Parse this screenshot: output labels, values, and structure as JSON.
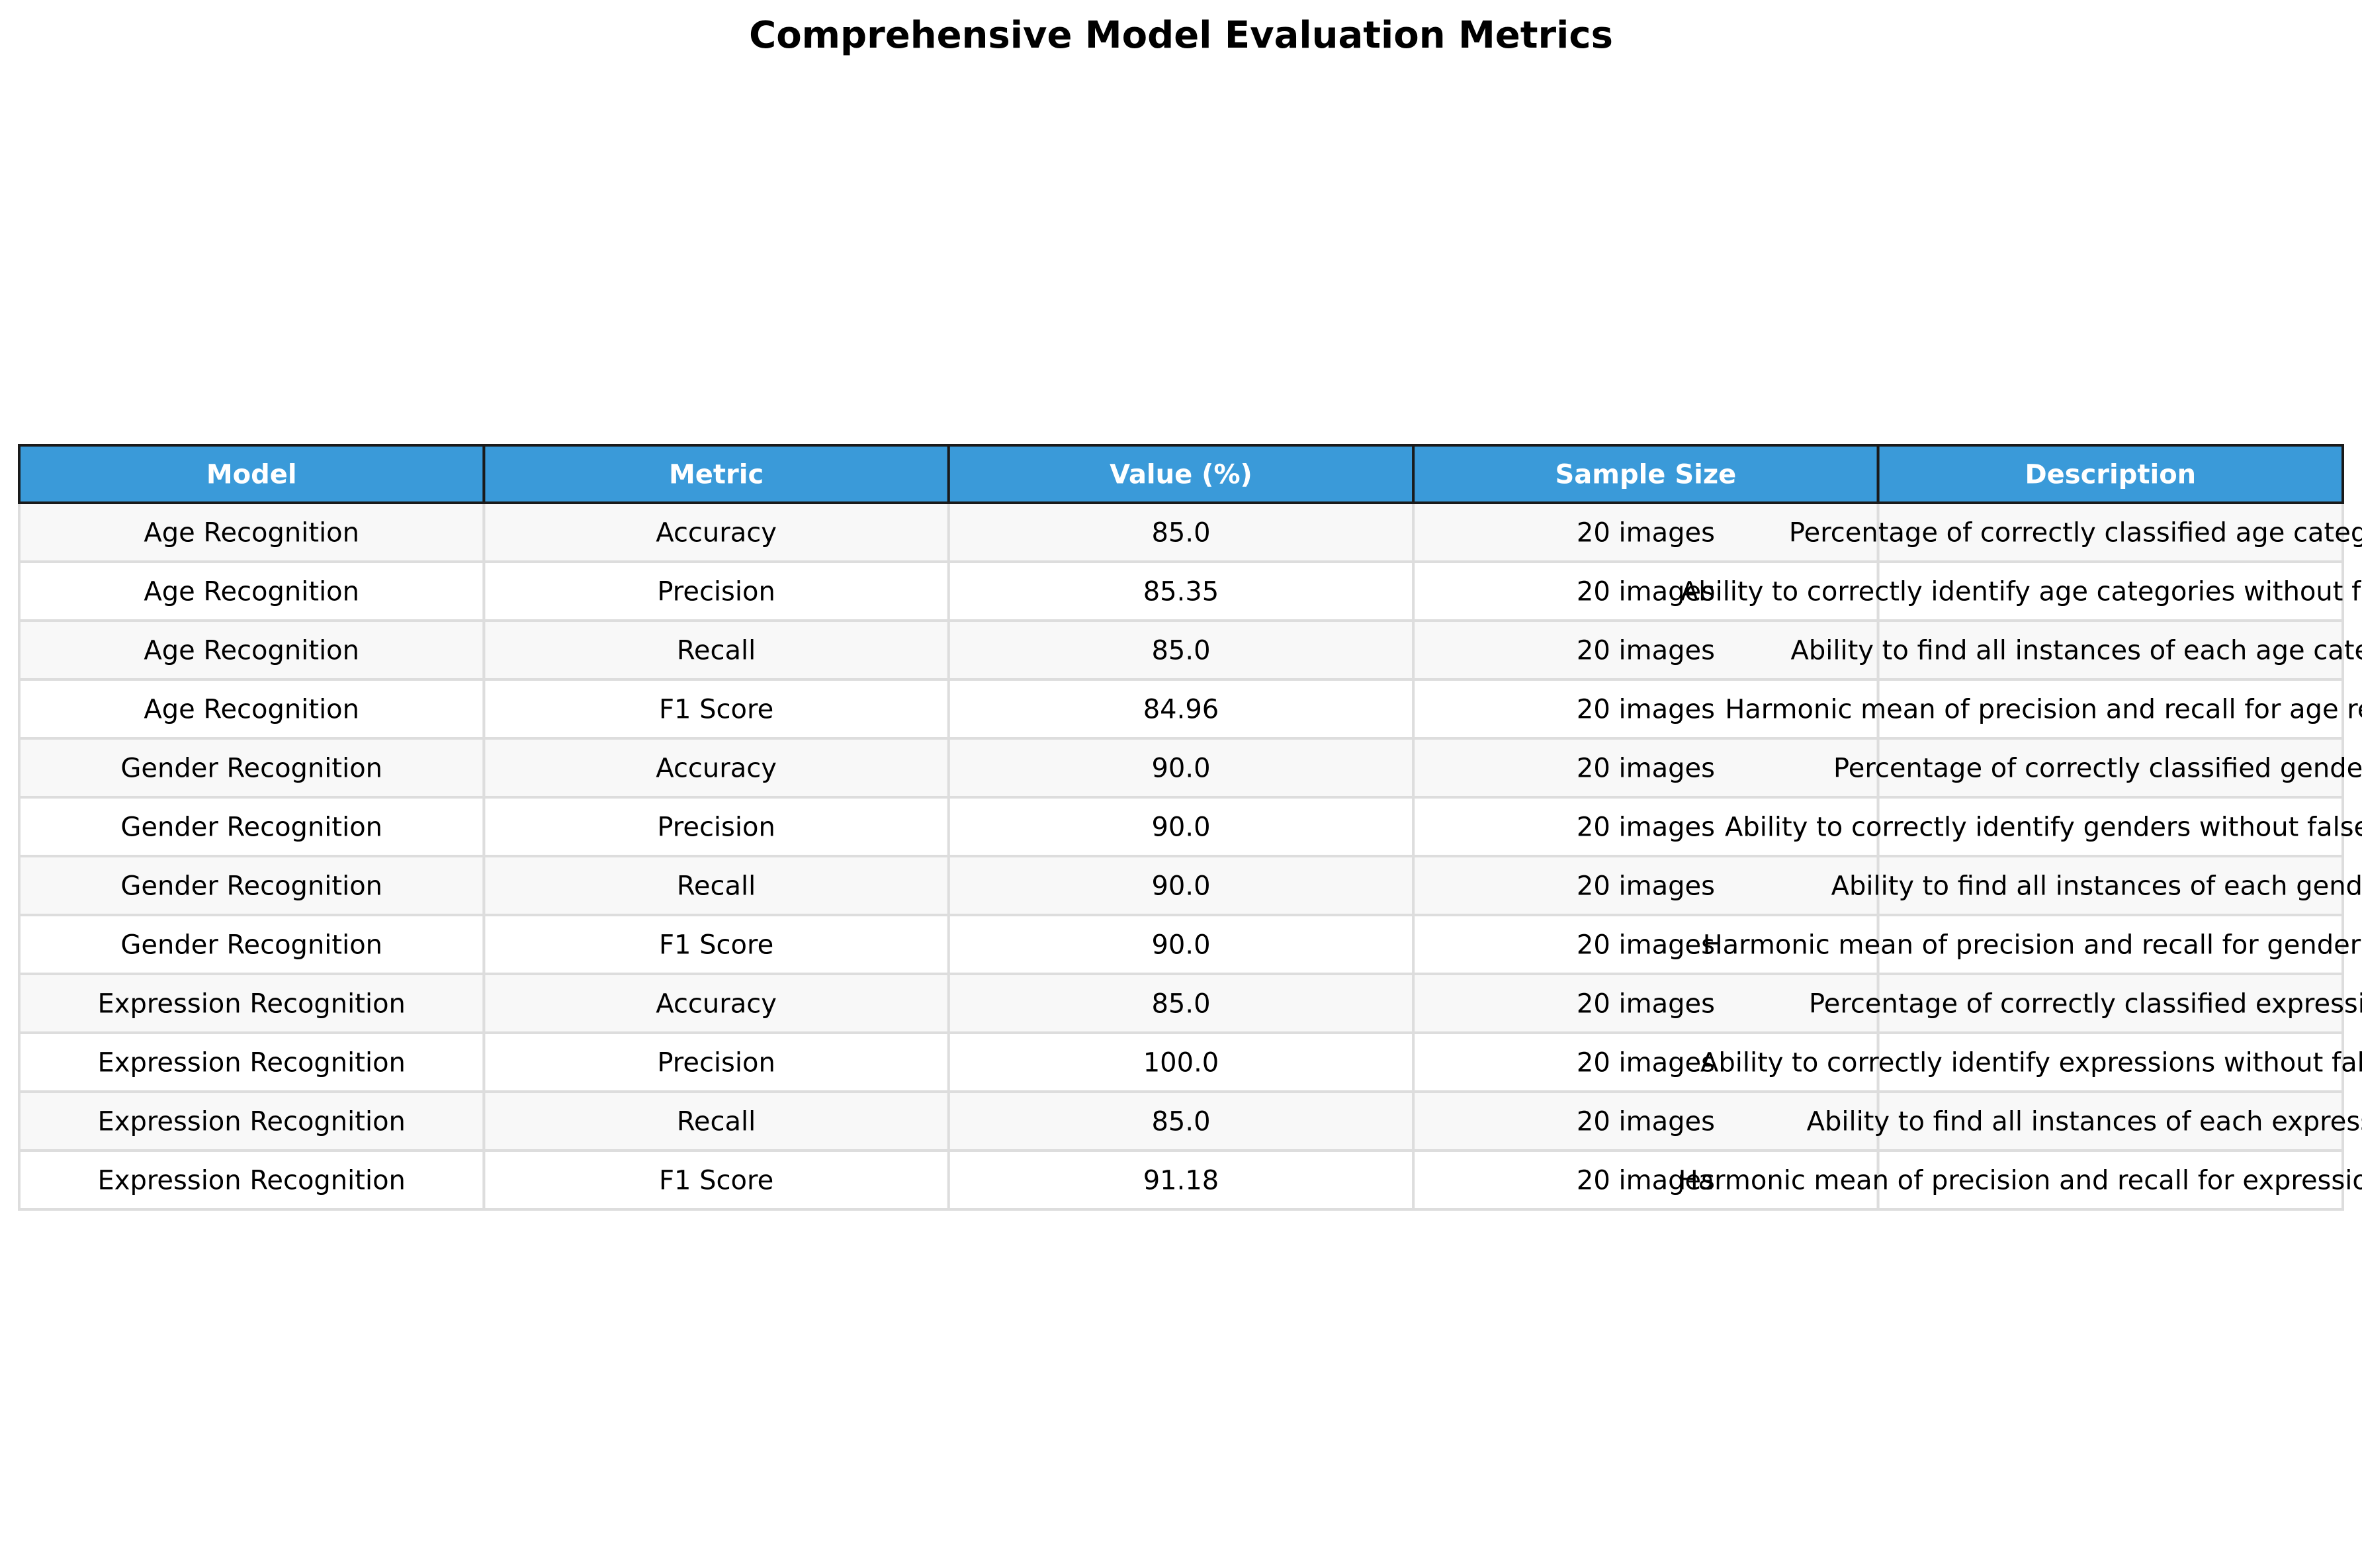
{
  "chart_data": {
    "type": "table",
    "title": "Comprehensive Model Evaluation Metrics",
    "columns": [
      "Model",
      "Metric",
      "Value (%)",
      "Sample Size",
      "Description"
    ],
    "rows": [
      [
        "Age Recognition",
        "Accuracy",
        "85.0",
        "20 images",
        "Percentage of correctly classified age categories"
      ],
      [
        "Age Recognition",
        "Precision",
        "85.35",
        "20 images",
        "Ability to correctly identify age categories without false positives"
      ],
      [
        "Age Recognition",
        "Recall",
        "85.0",
        "20 images",
        "Ability to find all instances of each age category"
      ],
      [
        "Age Recognition",
        "F1 Score",
        "84.96",
        "20 images",
        "Harmonic mean of precision and recall for age recognition"
      ],
      [
        "Gender Recognition",
        "Accuracy",
        "90.0",
        "20 images",
        "Percentage of correctly classified genders"
      ],
      [
        "Gender Recognition",
        "Precision",
        "90.0",
        "20 images",
        "Ability to correctly identify genders without false positives"
      ],
      [
        "Gender Recognition",
        "Recall",
        "90.0",
        "20 images",
        "Ability to find all instances of each gender"
      ],
      [
        "Gender Recognition",
        "F1 Score",
        "90.0",
        "20 images",
        "Harmonic mean of precision and recall for gender recognition"
      ],
      [
        "Expression Recognition",
        "Accuracy",
        "85.0",
        "20 images",
        "Percentage of correctly classified expressions"
      ],
      [
        "Expression Recognition",
        "Precision",
        "100.0",
        "20 images",
        "Ability to correctly identify expressions without false positives"
      ],
      [
        "Expression Recognition",
        "Recall",
        "85.0",
        "20 images",
        "Ability to find all instances of each expression"
      ],
      [
        "Expression Recognition",
        "F1 Score",
        "91.18",
        "20 images",
        "Harmonic mean of precision and recall for expression recognition"
      ]
    ],
    "header_color": "#3a9ad9",
    "header_text_color": "#ffffff",
    "row_colors": [
      "#f8f8f8",
      "#ffffff"
    ],
    "grid_color": "#dddddd"
  }
}
